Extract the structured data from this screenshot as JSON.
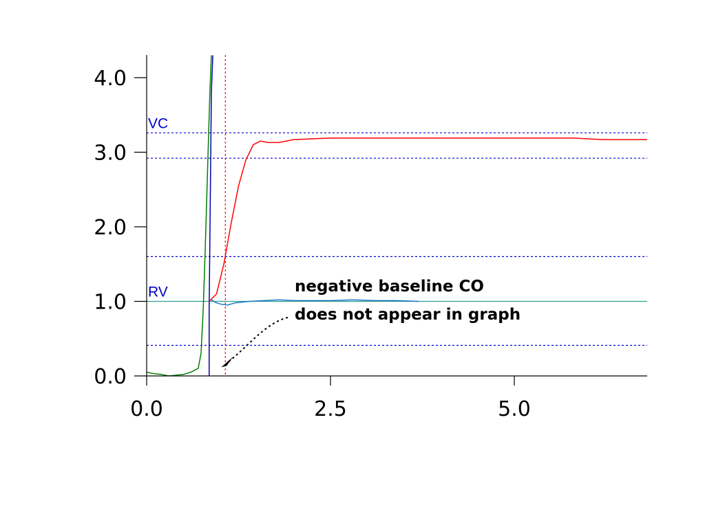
{
  "chart_data": {
    "type": "line",
    "title": "",
    "xlabel": "",
    "ylabel": "",
    "xlim": [
      0.0,
      6.85
    ],
    "ylim": [
      0.0,
      4.3
    ],
    "x_ticks": [
      {
        "value": 0.0,
        "label": "0.0"
      },
      {
        "value": 2.5,
        "label": "2.5"
      },
      {
        "value": 5.0,
        "label": "5.0"
      }
    ],
    "y_ticks": [
      {
        "value": 0.0,
        "label": "0.0"
      },
      {
        "value": 1.0,
        "label": "1.0"
      },
      {
        "value": 2.0,
        "label": "2.0"
      },
      {
        "value": 3.0,
        "label": "3.0"
      },
      {
        "value": 4.0,
        "label": "4.0"
      }
    ],
    "reference_lines": [
      {
        "y": 3.26,
        "label": "VC",
        "color": "#0000cc",
        "style": "dashed"
      },
      {
        "y": 2.92,
        "label": "",
        "color": "#0000cc",
        "style": "dashed"
      },
      {
        "y": 1.6,
        "label": "",
        "color": "#0000cc",
        "style": "dashed"
      },
      {
        "y": 1.0,
        "label": "RV",
        "color": "#2a9d8f",
        "style": "solid"
      },
      {
        "y": 0.41,
        "label": "",
        "color": "#0000cc",
        "style": "dashed"
      }
    ],
    "vertical_lines": [
      {
        "x": 1.07,
        "color": "#ff0000",
        "style": "dashed"
      }
    ],
    "series": [
      {
        "color": "#008000",
        "x": [
          0.0,
          0.1,
          0.2,
          0.3,
          0.4,
          0.5,
          0.6,
          0.7,
          0.74,
          0.77,
          0.8,
          0.83,
          0.86,
          0.88
        ],
        "y": [
          0.05,
          0.03,
          0.02,
          0.0,
          0.01,
          0.02,
          0.05,
          0.1,
          0.3,
          0.9,
          1.8,
          2.8,
          3.8,
          4.3
        ]
      },
      {
        "color": "#0000aa",
        "x": [
          0.85,
          0.85,
          0.86,
          0.87,
          0.88,
          0.9
        ],
        "y": [
          0.0,
          0.9,
          1.8,
          2.8,
          3.8,
          4.3
        ]
      },
      {
        "color": "#ff0000",
        "x": [
          0.85,
          0.95,
          1.05,
          1.15,
          1.25,
          1.35,
          1.45,
          1.55,
          1.65,
          1.8,
          2.0,
          2.5,
          3.0,
          4.0,
          5.0,
          5.8,
          6.2,
          6.85
        ],
        "y": [
          1.0,
          1.1,
          1.5,
          2.05,
          2.55,
          2.9,
          3.1,
          3.15,
          3.13,
          3.13,
          3.17,
          3.19,
          3.19,
          3.19,
          3.19,
          3.19,
          3.17,
          3.17
        ]
      },
      {
        "color": "#1e78c8",
        "x": [
          0.88,
          0.95,
          1.02,
          1.1,
          1.2,
          1.4,
          1.6,
          1.8,
          2.0,
          2.2,
          2.5,
          2.8,
          3.1,
          3.4,
          3.7
        ],
        "y": [
          1.02,
          0.98,
          0.96,
          0.95,
          0.98,
          1.0,
          1.01,
          1.02,
          1.01,
          1.01,
          1.01,
          1.02,
          1.01,
          1.01,
          1.0
        ]
      }
    ],
    "annotation": {
      "lines": [
        "negative baseline CO",
        "does not appear in graph"
      ],
      "arrow_to": {
        "x": 0.92,
        "y": 0.07
      }
    }
  }
}
